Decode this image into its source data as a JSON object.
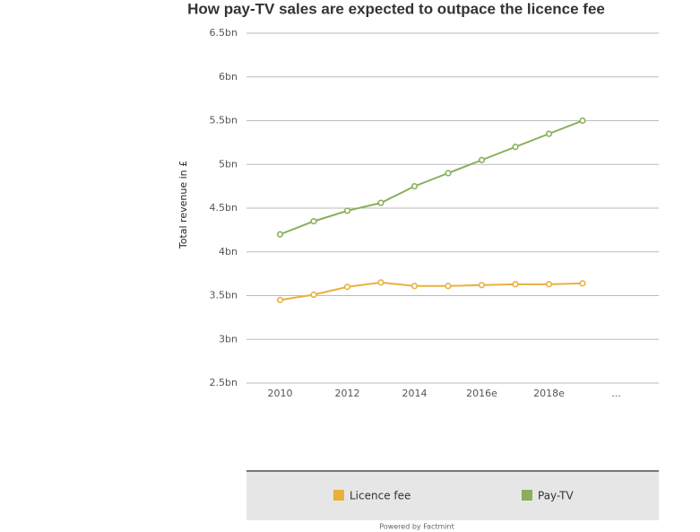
{
  "chart_data": {
    "type": "line",
    "title": "How pay-TV sales are expected to outpace the licence fee",
    "y_label": "Total revenue in £",
    "categories": [
      "2010",
      null,
      "2012",
      null,
      "2014",
      null,
      "2016e",
      null,
      "2018e",
      null,
      "..."
    ],
    "series": [
      {
        "name": "Licence fee",
        "color": "#e9b03e",
        "values": [
          3.45,
          3.51,
          3.6,
          3.65,
          3.61,
          3.61,
          3.62,
          3.63,
          3.63,
          3.64,
          null
        ]
      },
      {
        "name": "Pay-TV",
        "color": "#87b05a",
        "values": [
          4.2,
          4.35,
          4.47,
          4.56,
          4.75,
          4.9,
          5.05,
          5.2,
          5.35,
          5.5,
          null
        ]
      }
    ],
    "ylim": [
      2.5,
      6.5
    ],
    "yticks": [
      {
        "value": 2.5,
        "label": "2.5bn"
      },
      {
        "value": 3,
        "label": "3bn"
      },
      {
        "value": 3.5,
        "label": "3.5bn"
      },
      {
        "value": 4,
        "label": "4bn"
      },
      {
        "value": 4.5,
        "label": "4.5bn"
      },
      {
        "value": 5,
        "label": "5bn"
      },
      {
        "value": 5.5,
        "label": "5.5bn"
      },
      {
        "value": 6,
        "label": "6bn"
      },
      {
        "value": 6.5,
        "label": "6.5bn"
      }
    ],
    "grid": true,
    "legend": "bottom",
    "credit": "Powered by Factmint"
  }
}
